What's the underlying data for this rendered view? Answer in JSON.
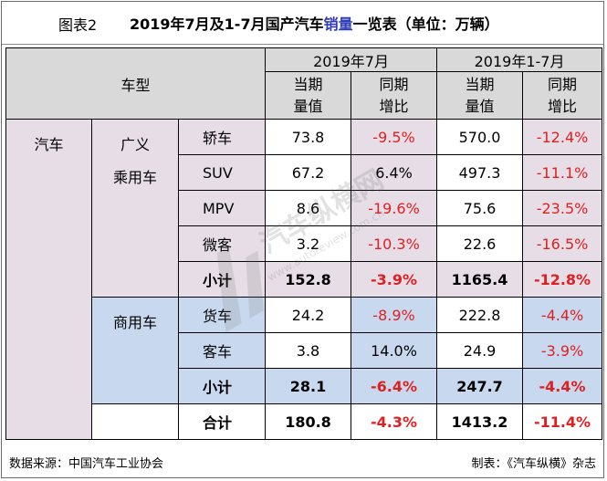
{
  "header": {
    "fig_label": "图表2",
    "title_pre": "2019年7月及1-7月国产汽车",
    "title_hl": "销量",
    "title_post": "一览表（单位：万辆）"
  },
  "table": {
    "col_model": "车型",
    "period1": "2019年7月",
    "period2": "2019年1-7月",
    "sub_value": "当期\n量值",
    "sub_yoy": "同期\n增比",
    "category": "汽车",
    "group_passenger": "广义\n乘用车",
    "group_commercial": "商用车",
    "rows": [
      {
        "type": "轿车",
        "v1": "73.8",
        "y1": "-9.5%",
        "v2": "570.0",
        "y2": "-12.4%"
      },
      {
        "type": "SUV",
        "v1": "67.2",
        "y1": "6.4%",
        "v2": "497.3",
        "y2": "-11.1%"
      },
      {
        "type": "MPV",
        "v1": "8.6",
        "y1": "-19.6%",
        "v2": "75.6",
        "y2": "-23.5%"
      },
      {
        "type": "微客",
        "v1": "3.2",
        "y1": "-10.3%",
        "v2": "22.6",
        "y2": "-16.5%"
      },
      {
        "type": "小计",
        "v1": "152.8",
        "y1": "-3.9%",
        "v2": "1165.4",
        "y2": "-12.8%"
      },
      {
        "type": "货车",
        "v1": "24.2",
        "y1": "-8.9%",
        "v2": "222.8",
        "y2": "-4.4%"
      },
      {
        "type": "客车",
        "v1": "3.8",
        "y1": "14.0%",
        "v2": "24.9",
        "y2": "-3.9%"
      },
      {
        "type": "小计",
        "v1": "28.1",
        "y1": "-6.4%",
        "v2": "247.7",
        "y2": "-4.4%"
      },
      {
        "type": "合计",
        "v1": "180.8",
        "y1": "-4.3%",
        "v2": "1413.2",
        "y2": "-11.4%"
      }
    ]
  },
  "watermark": {
    "name": "汽车纵横网",
    "url": "www.autoreview.com.cn"
  },
  "footer": {
    "source": "数据来源：中国汽车工业协会",
    "credit": "制表：《汽车纵横》杂志"
  }
}
